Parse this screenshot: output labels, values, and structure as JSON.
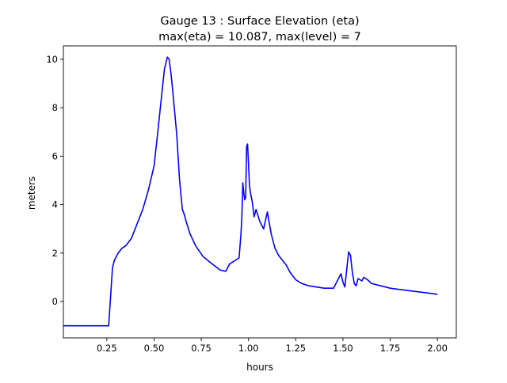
{
  "chart_data": {
    "type": "line",
    "title_line1": "Gauge 13 : Surface Elevation (eta)",
    "title_line2": "max(eta) =  10.087,    max(level) = 7",
    "xlabel": "hours",
    "ylabel": "meters",
    "xlim": [
      0.02,
      2.1
    ],
    "ylim": [
      -1.5,
      10.55
    ],
    "xticks": [
      0.25,
      0.5,
      0.75,
      1.0,
      1.25,
      1.5,
      1.75,
      2.0
    ],
    "xtick_labels": [
      "0.25",
      "0.50",
      "0.75",
      "1.00",
      "1.25",
      "1.50",
      "1.75",
      "2.00"
    ],
    "yticks": [
      0,
      2,
      4,
      6,
      8,
      10
    ],
    "ytick_labels": [
      "0",
      "2",
      "4",
      "6",
      "8",
      "10"
    ],
    "grid": false,
    "line_color": "#0000ff",
    "series": [
      {
        "x": [
          0.0,
          0.1,
          0.2,
          0.26,
          0.27,
          0.28,
          0.29,
          0.31,
          0.33,
          0.35,
          0.38,
          0.41,
          0.44,
          0.47,
          0.5,
          0.52,
          0.54,
          0.555,
          0.57,
          0.58,
          0.59,
          0.6,
          0.62,
          0.635,
          0.65,
          0.66,
          0.67,
          0.69,
          0.72,
          0.76,
          0.8,
          0.85,
          0.88,
          0.9,
          0.93,
          0.95,
          0.96,
          0.965,
          0.97,
          0.975,
          0.98,
          0.985,
          0.99,
          0.995,
          1.0,
          1.005,
          1.01,
          1.02,
          1.03,
          1.04,
          1.06,
          1.08,
          1.1,
          1.12,
          1.14,
          1.16,
          1.18,
          1.2,
          1.22,
          1.25,
          1.28,
          1.32,
          1.36,
          1.4,
          1.45,
          1.49,
          1.5,
          1.51,
          1.53,
          1.54,
          1.55,
          1.56,
          1.57,
          1.58,
          1.59,
          1.6,
          1.61,
          1.63,
          1.65,
          1.7,
          1.75,
          1.8,
          1.85,
          1.9,
          1.95,
          2.0
        ],
        "y": [
          -1.0,
          -1.0,
          -1.0,
          -1.0,
          0.2,
          1.4,
          1.7,
          2.0,
          2.2,
          2.3,
          2.6,
          3.2,
          3.8,
          4.6,
          5.6,
          7.0,
          8.5,
          9.6,
          10.087,
          10.0,
          9.4,
          8.6,
          6.9,
          5.0,
          3.8,
          3.6,
          3.3,
          2.8,
          2.3,
          1.85,
          1.6,
          1.3,
          1.25,
          1.55,
          1.7,
          1.8,
          2.8,
          3.5,
          4.9,
          4.5,
          4.2,
          4.3,
          6.4,
          6.5,
          5.7,
          4.8,
          4.5,
          4.1,
          3.5,
          3.8,
          3.3,
          3.0,
          3.7,
          2.8,
          2.2,
          1.9,
          1.7,
          1.5,
          1.2,
          0.9,
          0.75,
          0.65,
          0.6,
          0.55,
          0.55,
          1.15,
          0.8,
          0.6,
          2.05,
          1.9,
          1.2,
          0.75,
          0.65,
          0.95,
          0.9,
          0.85,
          1.0,
          0.9,
          0.75,
          0.65,
          0.55,
          0.5,
          0.45,
          0.4,
          0.35,
          0.3
        ]
      }
    ]
  }
}
